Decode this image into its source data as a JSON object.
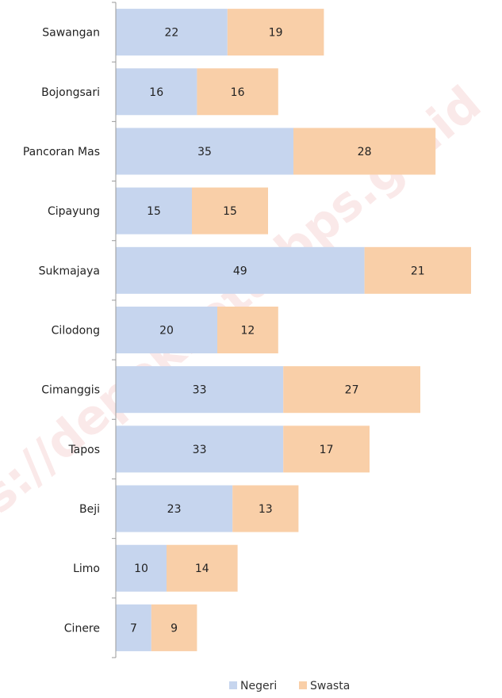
{
  "chart_data": {
    "type": "bar",
    "orientation": "horizontal",
    "stacked": true,
    "categories": [
      "Sawangan",
      "Bojongsari",
      "Pancoran Mas",
      "Cipayung",
      "Sukmajaya",
      "Cilodong",
      "Cimanggis",
      "Tapos",
      "Beji",
      "Limo",
      "Cinere"
    ],
    "series": [
      {
        "name": "Negeri",
        "color": "#c6d5ee",
        "values": [
          22,
          16,
          35,
          15,
          49,
          20,
          33,
          33,
          23,
          10,
          7
        ]
      },
      {
        "name": "Swasta",
        "color": "#f9cfa8",
        "values": [
          19,
          16,
          28,
          15,
          21,
          12,
          27,
          17,
          13,
          14,
          9
        ]
      }
    ],
    "legend_position": "bottom",
    "grid": false,
    "xlim": [
      0,
      70
    ],
    "watermark": "https://depokkota.bps.go.id"
  }
}
